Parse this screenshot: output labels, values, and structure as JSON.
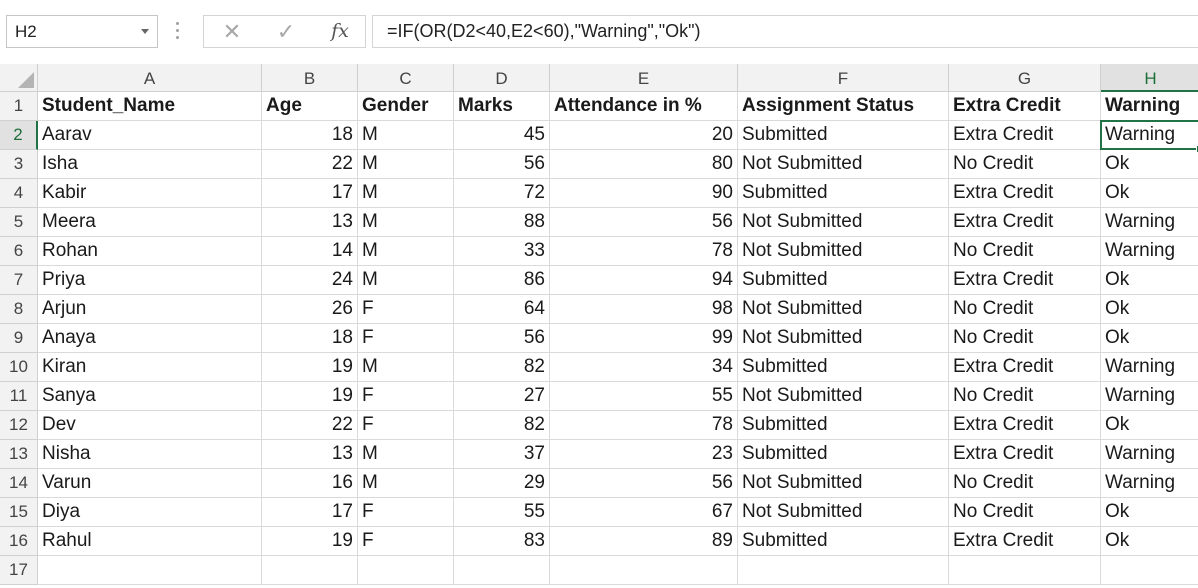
{
  "name_box": {
    "value": "H2"
  },
  "formula_bar": {
    "cancel_icon": "✕",
    "enter_icon": "✓",
    "fx_label": "fx",
    "formula": "=IF(OR(D2<40,E2<60),\"Warning\",\"Ok\")"
  },
  "columns": [
    "A",
    "B",
    "C",
    "D",
    "E",
    "F",
    "G",
    "H"
  ],
  "active_cell": {
    "column": "H",
    "row": 2
  },
  "headers": [
    "Student_Name",
    "Age",
    "Gender",
    "Marks",
    "Attendance in %",
    "Assignment Status",
    "Extra Credit",
    "Warning"
  ],
  "rows": [
    [
      "Aarav",
      "18",
      "M",
      "45",
      "20",
      "Submitted",
      "Extra Credit",
      "Warning"
    ],
    [
      "Isha",
      "22",
      "M",
      "56",
      "80",
      "Not Submitted",
      "No Credit",
      "Ok"
    ],
    [
      "Kabir",
      "17",
      "M",
      "72",
      "90",
      "Submitted",
      "Extra Credit",
      "Ok"
    ],
    [
      "Meera",
      "13",
      "M",
      "88",
      "56",
      "Not Submitted",
      "Extra Credit",
      "Warning"
    ],
    [
      "Rohan",
      "14",
      "M",
      "33",
      "78",
      "Not Submitted",
      "No Credit",
      "Warning"
    ],
    [
      "Priya",
      "24",
      "M",
      "86",
      "94",
      "Submitted",
      "Extra Credit",
      "Ok"
    ],
    [
      "Arjun",
      "26",
      "F",
      "64",
      "98",
      "Not Submitted",
      "No Credit",
      "Ok"
    ],
    [
      "Anaya",
      "18",
      "F",
      "56",
      "99",
      "Not Submitted",
      "No Credit",
      "Ok"
    ],
    [
      "Kiran",
      "19",
      "M",
      "82",
      "34",
      "Submitted",
      "Extra Credit",
      "Warning"
    ],
    [
      "Sanya",
      "19",
      "F",
      "27",
      "55",
      "Not Submitted",
      "No Credit",
      "Warning"
    ],
    [
      "Dev",
      "22",
      "F",
      "82",
      "78",
      "Submitted",
      "Extra Credit",
      "Ok"
    ],
    [
      "Nisha",
      "13",
      "M",
      "37",
      "23",
      "Submitted",
      "Extra Credit",
      "Warning"
    ],
    [
      "Varun",
      "16",
      "M",
      "29",
      "56",
      "Not Submitted",
      "No Credit",
      "Warning"
    ],
    [
      "Diya",
      "17",
      "F",
      "55",
      "67",
      "Not Submitted",
      "No Credit",
      "Ok"
    ],
    [
      "Rahul",
      "19",
      "F",
      "83",
      "89",
      "Submitted",
      "Extra Credit",
      "Ok"
    ]
  ],
  "row_numbers": [
    "1",
    "2",
    "3",
    "4",
    "5",
    "6",
    "7",
    "8",
    "9",
    "10",
    "11",
    "12",
    "13",
    "14",
    "15",
    "16",
    "17"
  ]
}
